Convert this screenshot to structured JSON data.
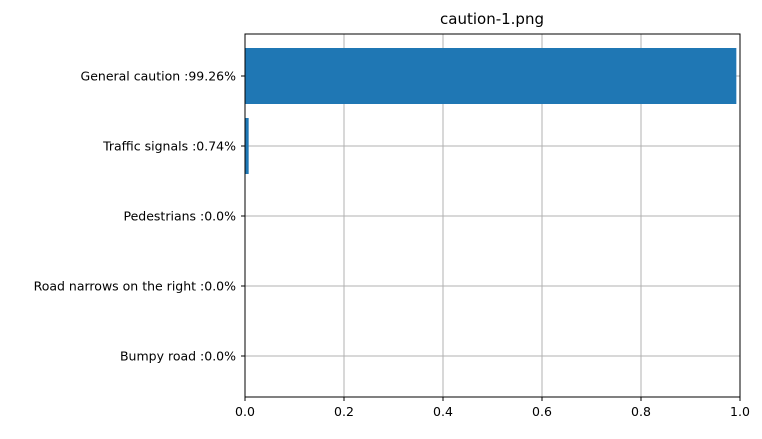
{
  "chart_data": {
    "type": "bar",
    "orientation": "horizontal",
    "title": "caution-1.png",
    "xlabel": "",
    "ylabel": "",
    "categories": [
      "General caution :99.26%",
      "Traffic signals :0.74%",
      "Pedestrians :0.0%",
      "Road narrows on the right :0.0%",
      "Bumpy road :0.0%"
    ],
    "values": [
      0.9926,
      0.0074,
      0.0,
      0.0,
      0.0
    ],
    "xlim": [
      0,
      1.0
    ],
    "xticks": [
      "0.0",
      "0.2",
      "0.4",
      "0.6",
      "0.8",
      "1.0"
    ],
    "grid": true,
    "bar_color": "#1f77b4",
    "grid_color": "#b0b0b0"
  }
}
